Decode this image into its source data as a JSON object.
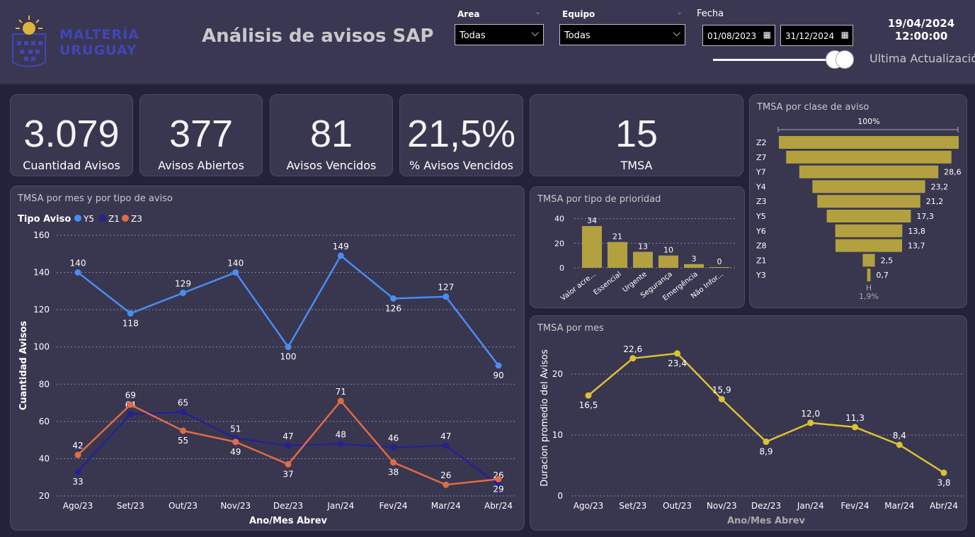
{
  "header": {
    "brand_line1": "MALTERÍA",
    "brand_line2": "URUGUAY",
    "title": "Análisis de avisos SAP",
    "filters": {
      "area_label": "Area",
      "area_value": "Todas",
      "equipo_label": "Equipo",
      "equipo_value": "Todas",
      "fecha_label": "Fecha",
      "fecha_start": "01/08/2023",
      "fecha_end": "31/12/2024"
    },
    "date": "19/04/2024",
    "time": "12:00:00",
    "update_label": "Ultima Actualización"
  },
  "kpis": [
    {
      "value": "3.079",
      "label": "Cuantidad Avisos"
    },
    {
      "value": "377",
      "label": "Avisos Abiertos"
    },
    {
      "value": "81",
      "label": "Avisos Vencidos"
    },
    {
      "value": "21,5%",
      "label": "% Avisos Vencidos"
    },
    {
      "value": "15",
      "label": "TMSA"
    }
  ],
  "colors": {
    "y5": "#4a8df0",
    "z1": "#24238f",
    "z3": "#e06c44",
    "gold": "#b3a140",
    "yellow": "#d9c234"
  },
  "chart_data": [
    {
      "type": "line",
      "title": "TMSA por mes y por tipo de aviso",
      "legend_title": "Tipo Aviso",
      "categories": [
        "Ago/23",
        "Set/23",
        "Out/23",
        "Nov/23",
        "Dez/23",
        "Jan/24",
        "Fev/24",
        "Mar/24",
        "Abr/24"
      ],
      "series": [
        {
          "name": "Y5",
          "values": [
            140,
            118,
            129,
            140,
            100,
            149,
            126,
            127,
            90
          ]
        },
        {
          "name": "Z1",
          "values": [
            33,
            64,
            65,
            51,
            47,
            48,
            46,
            47,
            26
          ]
        },
        {
          "name": "Z3",
          "values": [
            42,
            69,
            55,
            49,
            37,
            71,
            38,
            26,
            29
          ]
        }
      ],
      "xlabel": "Ano/Mes Abrev",
      "ylabel": "Cuantidad Avisos",
      "yticks": [
        "20",
        "40",
        "60",
        "80",
        "100",
        "120",
        "140",
        "160"
      ],
      "ylim": [
        20,
        160
      ]
    },
    {
      "type": "bar",
      "title": "TMSA por tipo de prioridad",
      "categories": [
        "Valor acre...",
        "Essencial",
        "Urgente",
        "Segurança",
        "Emergência",
        "Não Infor..."
      ],
      "values": [
        34,
        21,
        13,
        10,
        3,
        0
      ],
      "yticks": [
        "0",
        "20",
        "40"
      ],
      "ylim": [
        0,
        45
      ]
    },
    {
      "type": "bar",
      "title": "TMSA por clase de aviso",
      "top_label": "100%",
      "bottom_label": "H",
      "bottom_pct": "1,9%",
      "categories": [
        "Z2",
        "Z7",
        "Y7",
        "Y4",
        "Z3",
        "Y5",
        "Y6",
        "Z8",
        "Z1",
        "Y3"
      ],
      "values": [
        37,
        34,
        28.6,
        23.2,
        21.2,
        17.3,
        13.8,
        13.7,
        2.5,
        0.7
      ],
      "labels": [
        "",
        "",
        "28,6",
        "23,2",
        "21,2",
        "17,3",
        "13,8",
        "13,7",
        "2,5",
        "0,7"
      ]
    },
    {
      "type": "line",
      "title": "TMSA por mes",
      "categories": [
        "Ago/23",
        "Set/23",
        "Out/23",
        "Nov/23",
        "Dez/23",
        "Jan/24",
        "Fev/24",
        "Mar/24",
        "Abr/24"
      ],
      "values": [
        16.5,
        22.6,
        23.4,
        15.9,
        8.9,
        12.0,
        11.3,
        8.4,
        3.8
      ],
      "labels": [
        "16,5",
        "22,6",
        "23,4",
        "15,9",
        "8,9",
        "12,0",
        "11,3",
        "8,4",
        "3,8"
      ],
      "xlabel": "Ano/Mes Abrev",
      "ylabel": "Duracion promedio del Avisos",
      "yticks": [
        "0",
        "10",
        "20"
      ],
      "ylim": [
        0,
        27
      ]
    }
  ]
}
